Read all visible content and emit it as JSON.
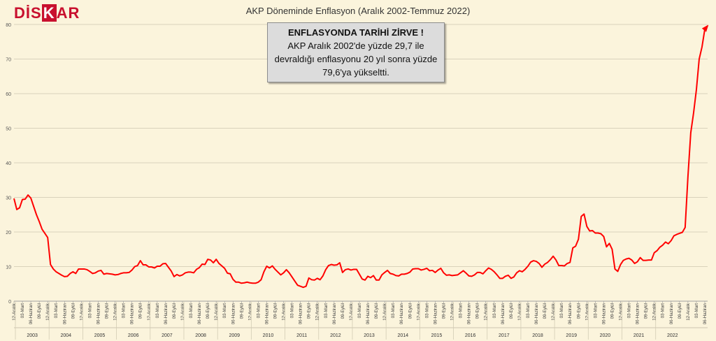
{
  "logo": {
    "text_a": "DİS",
    "text_k": "K",
    "text_b": "AR"
  },
  "annotation": {
    "headline": "ENFLASYONDA TARİHİ ZİRVE !",
    "body": "AKP Aralık 2002'de yüzde 29,7 ile devraldığı enflasyonu 20 yıl sonra yüzde 79,6'ya yükseltti."
  },
  "chart_data": {
    "type": "line",
    "title": "AKP Döneminde Enflasyon (Aralık 2002-Temmuz 2022)",
    "ylim": [
      0,
      80
    ],
    "yticks": [
      0,
      10,
      20,
      30,
      40,
      50,
      60,
      70,
      80
    ],
    "grid": true,
    "line_color": "#ff0000",
    "x_tick_labels": [
      "12-Aralık",
      "03-Mart",
      "06-Haziran",
      "09-Eylül"
    ],
    "x_tick_cycle": [
      {
        "label": "12-Aralık",
        "offset": 0
      },
      {
        "label": "03-Mart",
        "offset": 3
      },
      {
        "label": "06-Haziran",
        "offset": 6
      },
      {
        "label": "09-Eylül",
        "offset": 9
      }
    ],
    "years": [
      "2003",
      "2004",
      "2005",
      "2006",
      "2007",
      "2008",
      "2009",
      "2010",
      "2011",
      "2012",
      "2013",
      "2014",
      "2015",
      "2016",
      "2017",
      "2018",
      "2019",
      "2020",
      "2021",
      "2022"
    ],
    "start_label": "12-Aralık 2002",
    "values": [
      29.7,
      26.5,
      27.0,
      29.4,
      29.5,
      30.7,
      29.8,
      27.4,
      25.0,
      23.0,
      20.8,
      19.6,
      18.4,
      10.6,
      9.3,
      8.5,
      8.0,
      7.5,
      7.1,
      7.2,
      8.0,
      8.5,
      8.0,
      9.3,
      9.3,
      9.3,
      9.1,
      8.6,
      8.0,
      8.2,
      8.7,
      8.9,
      7.8,
      8.0,
      7.9,
      7.8,
      7.6,
      7.7,
      8.0,
      8.2,
      8.2,
      8.3,
      9.0,
      10.0,
      10.3,
      11.7,
      10.5,
      10.5,
      9.9,
      9.9,
      9.6,
      10.1,
      10.1,
      10.8,
      10.9,
      9.8,
      8.7,
      7.1,
      7.7,
      7.3,
      7.6,
      8.2,
      8.4,
      8.4,
      8.2,
      9.2,
      9.7,
      10.7,
      10.6,
      12.1,
      11.9,
      11.1,
      12.1,
      10.9,
      10.2,
      9.5,
      8.1,
      7.9,
      6.3,
      5.5,
      5.5,
      5.2,
      5.3,
      5.5,
      5.3,
      5.2,
      5.2,
      5.5,
      6.2,
      8.5,
      10.1,
      9.6,
      10.2,
      9.2,
      8.4,
      7.6,
      8.2,
      9.1,
      8.2,
      7.0,
      5.8,
      4.6,
      4.3,
      4.0,
      4.3,
      6.7,
      6.2,
      6.1,
      6.6,
      6.2,
      7.3,
      9.1,
      10.3,
      10.6,
      10.4,
      10.5,
      11.1,
      8.3,
      9.1,
      9.3,
      9.0,
      9.2,
      9.2,
      7.8,
      6.4,
      6.1,
      7.2,
      6.8,
      7.4,
      6.1,
      6.1,
      7.6,
      8.3,
      8.9,
      8.0,
      7.8,
      7.4,
      7.3,
      7.8,
      7.8,
      8.0,
      8.4,
      9.3,
      9.4,
      9.4,
      9.0,
      9.2,
      9.5,
      8.8,
      8.9,
      8.3,
      9.0,
      9.5,
      8.2,
      7.5,
      7.6,
      7.4,
      7.5,
      7.6,
      8.2,
      8.8,
      8.1,
      7.3,
      7.2,
      7.6,
      8.3,
      8.3,
      7.9,
      8.8,
      9.6,
      9.2,
      8.5,
      7.6,
      6.6,
      6.6,
      7.2,
      7.5,
      6.6,
      7.0,
      8.2,
      8.8,
      8.5,
      9.2,
      10.1,
      11.3,
      11.7,
      11.5,
      10.9,
      9.8,
      10.7,
      11.2,
      12.0,
      13.0,
      11.9,
      10.3,
      10.3,
      10.2,
      10.9,
      11.2,
      15.4,
      15.9,
      17.9,
      24.5,
      25.2,
      21.6,
      20.3,
      20.4,
      19.7,
      19.7,
      19.5,
      18.7,
      15.7,
      16.7,
      15.0,
      9.3,
      8.6,
      10.6,
      11.8,
      12.2,
      12.4,
      11.9,
      10.9,
      11.4,
      12.6,
      11.8,
      11.8,
      11.9,
      11.9,
      14.0,
      14.6,
      15.6,
      16.2,
      17.1,
      16.6,
      17.5,
      18.9,
      19.3,
      19.6,
      19.9,
      21.3,
      36.1,
      48.7,
      54.4,
      61.1,
      70.0,
      73.5,
      78.6,
      79.6
    ]
  }
}
